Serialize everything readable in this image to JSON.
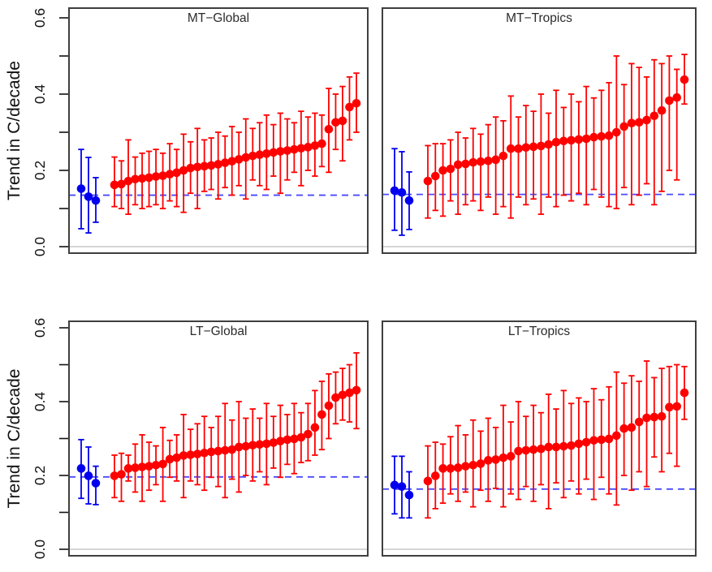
{
  "figure": {
    "ylabel": "Trend in C/decade",
    "ytick_labels": [
      "0.0",
      "0.2",
      "0.4",
      "0.6"
    ],
    "colors": {
      "model": "#ff0000",
      "observation": "#0000ee",
      "dashed_line": "#4a4aff",
      "zero_line": "#c9c9c9",
      "border": "#3f3f3f",
      "title_text": "#2b2b2b",
      "axis_text": "#111111"
    }
  },
  "chart_data": {
    "type": "scatter",
    "ylabel": "Trend in C/decade",
    "ylim": [
      -0.02,
      0.62
    ],
    "yticks_major": [
      0.0,
      0.2,
      0.4,
      0.6
    ],
    "yticks_minor": [
      0.1,
      0.3,
      0.5
    ],
    "grid": false,
    "legend_position": "none",
    "panels": [
      {
        "title": "MT−Global",
        "row": 0,
        "col": 0,
        "dashed_line_y": 0.135,
        "observations": {
          "values": [
            0.152,
            0.131,
            0.121
          ],
          "err_lo": [
            0.047,
            0.036,
            0.064
          ],
          "err_hi": [
            0.255,
            0.234,
            0.181
          ]
        },
        "models": {
          "values": [
            0.162,
            0.164,
            0.172,
            0.177,
            0.179,
            0.181,
            0.184,
            0.186,
            0.19,
            0.194,
            0.2,
            0.206,
            0.209,
            0.211,
            0.213,
            0.216,
            0.22,
            0.224,
            0.229,
            0.234,
            0.238,
            0.241,
            0.244,
            0.247,
            0.25,
            0.252,
            0.255,
            0.258,
            0.261,
            0.265,
            0.27,
            0.308,
            0.326,
            0.33,
            0.366,
            0.376
          ],
          "err_lo": [
            0.105,
            0.1,
            0.085,
            0.11,
            0.1,
            0.105,
            0.11,
            0.1,
            0.12,
            0.105,
            0.09,
            0.14,
            0.1,
            0.145,
            0.15,
            0.125,
            0.155,
            0.135,
            0.16,
            0.125,
            0.175,
            0.16,
            0.15,
            0.185,
            0.14,
            0.175,
            0.195,
            0.16,
            0.2,
            0.185,
            0.21,
            0.195,
            0.255,
            0.225,
            0.28,
            0.3
          ],
          "err_hi": [
            0.235,
            0.225,
            0.28,
            0.235,
            0.245,
            0.25,
            0.255,
            0.245,
            0.27,
            0.255,
            0.295,
            0.275,
            0.31,
            0.28,
            0.285,
            0.3,
            0.29,
            0.315,
            0.3,
            0.335,
            0.31,
            0.325,
            0.345,
            0.32,
            0.35,
            0.335,
            0.325,
            0.355,
            0.34,
            0.35,
            0.345,
            0.415,
            0.4,
            0.42,
            0.445,
            0.455
          ]
        }
      },
      {
        "title": "MT−Tropics",
        "row": 0,
        "col": 1,
        "dashed_line_y": 0.137,
        "observations": {
          "values": [
            0.147,
            0.142,
            0.121
          ],
          "err_lo": [
            0.043,
            0.03,
            0.045
          ],
          "err_hi": [
            0.257,
            0.249,
            0.196
          ]
        },
        "models": {
          "values": [
            0.172,
            0.185,
            0.2,
            0.204,
            0.215,
            0.217,
            0.221,
            0.223,
            0.225,
            0.228,
            0.238,
            0.257,
            0.257,
            0.26,
            0.262,
            0.264,
            0.268,
            0.274,
            0.277,
            0.279,
            0.281,
            0.283,
            0.287,
            0.289,
            0.291,
            0.3,
            0.315,
            0.324,
            0.326,
            0.332,
            0.343,
            0.357,
            0.383,
            0.391,
            0.438
          ],
          "err_lo": [
            0.075,
            0.095,
            0.08,
            0.12,
            0.085,
            0.11,
            0.12,
            0.095,
            0.13,
            0.085,
            0.105,
            0.075,
            0.13,
            0.11,
            0.125,
            0.085,
            0.13,
            0.105,
            0.135,
            0.12,
            0.14,
            0.11,
            0.15,
            0.13,
            0.105,
            0.1,
            0.155,
            0.11,
            0.135,
            0.165,
            0.11,
            0.145,
            0.2,
            0.175,
            0.374
          ],
          "err_hi": [
            0.265,
            0.27,
            0.27,
            0.28,
            0.3,
            0.285,
            0.31,
            0.295,
            0.32,
            0.34,
            0.33,
            0.395,
            0.34,
            0.37,
            0.355,
            0.4,
            0.35,
            0.41,
            0.365,
            0.4,
            0.38,
            0.42,
            0.39,
            0.41,
            0.43,
            0.5,
            0.425,
            0.48,
            0.47,
            0.445,
            0.49,
            0.48,
            0.5,
            0.465,
            0.504
          ]
        }
      },
      {
        "title": "LT−Global",
        "row": 1,
        "col": 0,
        "dashed_line_y": 0.196,
        "observations": {
          "values": [
            0.219,
            0.199,
            0.179
          ],
          "err_lo": [
            0.138,
            0.123,
            0.121
          ],
          "err_hi": [
            0.297,
            0.277,
            0.225
          ]
        },
        "models": {
          "values": [
            0.199,
            0.203,
            0.219,
            0.221,
            0.223,
            0.225,
            0.228,
            0.231,
            0.244,
            0.248,
            0.254,
            0.256,
            0.258,
            0.261,
            0.264,
            0.266,
            0.268,
            0.27,
            0.277,
            0.279,
            0.282,
            0.284,
            0.286,
            0.289,
            0.293,
            0.297,
            0.299,
            0.303,
            0.312,
            0.33,
            0.365,
            0.389,
            0.411,
            0.418,
            0.424,
            0.431
          ],
          "err_lo": [
            0.14,
            0.13,
            0.185,
            0.155,
            0.13,
            0.16,
            0.175,
            0.13,
            0.195,
            0.185,
            0.14,
            0.185,
            0.175,
            0.16,
            0.195,
            0.17,
            0.14,
            0.19,
            0.155,
            0.2,
            0.185,
            0.21,
            0.175,
            0.22,
            0.195,
            0.23,
            0.205,
            0.235,
            0.24,
            0.255,
            0.27,
            0.3,
            0.34,
            0.35,
            0.345,
            0.327
          ],
          "err_hi": [
            0.255,
            0.26,
            0.255,
            0.285,
            0.31,
            0.29,
            0.28,
            0.33,
            0.295,
            0.31,
            0.365,
            0.325,
            0.34,
            0.36,
            0.33,
            0.36,
            0.395,
            0.35,
            0.4,
            0.355,
            0.38,
            0.355,
            0.395,
            0.36,
            0.39,
            0.365,
            0.395,
            0.37,
            0.395,
            0.43,
            0.455,
            0.475,
            0.48,
            0.49,
            0.5,
            0.532
          ]
        }
      },
      {
        "title": "LT−Tropics",
        "row": 1,
        "col": 1,
        "dashed_line_y": 0.163,
        "observations": {
          "values": [
            0.174,
            0.17,
            0.147
          ],
          "err_lo": [
            0.096,
            0.085,
            0.085
          ],
          "err_hi": [
            0.252,
            0.252,
            0.21
          ]
        },
        "models": {
          "values": [
            0.185,
            0.199,
            0.219,
            0.219,
            0.221,
            0.225,
            0.228,
            0.232,
            0.241,
            0.243,
            0.248,
            0.252,
            0.266,
            0.268,
            0.27,
            0.272,
            0.277,
            0.277,
            0.279,
            0.281,
            0.286,
            0.29,
            0.295,
            0.297,
            0.299,
            0.308,
            0.327,
            0.33,
            0.345,
            0.356,
            0.358,
            0.36,
            0.385,
            0.387,
            0.424
          ],
          "err_lo": [
            0.085,
            0.11,
            0.125,
            0.15,
            0.13,
            0.155,
            0.115,
            0.16,
            0.13,
            0.165,
            0.115,
            0.15,
            0.135,
            0.17,
            0.13,
            0.175,
            0.11,
            0.18,
            0.14,
            0.185,
            0.15,
            0.19,
            0.135,
            0.195,
            0.15,
            0.12,
            0.2,
            0.16,
            0.21,
            0.17,
            0.25,
            0.21,
            0.26,
            0.225,
            0.352
          ],
          "err_hi": [
            0.28,
            0.29,
            0.285,
            0.305,
            0.335,
            0.31,
            0.35,
            0.32,
            0.355,
            0.33,
            0.39,
            0.345,
            0.4,
            0.36,
            0.39,
            0.37,
            0.42,
            0.38,
            0.43,
            0.395,
            0.41,
            0.4,
            0.435,
            0.405,
            0.44,
            0.48,
            0.45,
            0.47,
            0.455,
            0.51,
            0.465,
            0.49,
            0.495,
            0.5,
            0.495
          ]
        }
      }
    ]
  }
}
